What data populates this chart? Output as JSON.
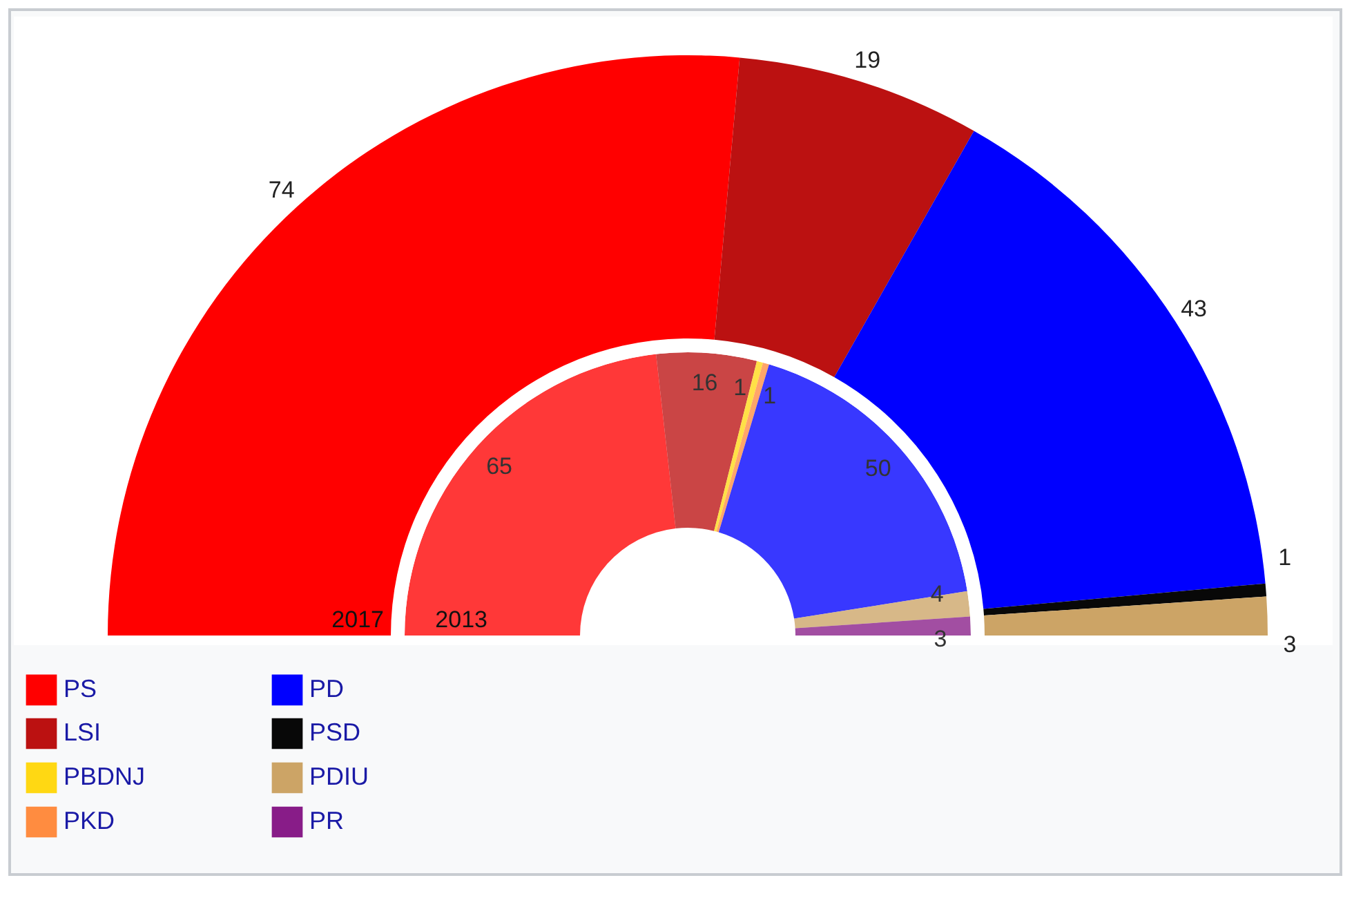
{
  "chart_data": {
    "type": "donut",
    "categories": [
      "PS",
      "LSI",
      "PBDNJ",
      "PKD",
      "PD",
      "PSD",
      "PDIU",
      "PR"
    ],
    "colors": [
      "#ff0000",
      "#bb1111",
      "#ffd813",
      "#ff8c40",
      "#0000ff",
      "#080808",
      "#cca466",
      "#881c88"
    ],
    "series": [
      {
        "name": "2017",
        "values": [
          74,
          19,
          null,
          null,
          43,
          1,
          3,
          null
        ]
      },
      {
        "name": "2013",
        "values": [
          65,
          16,
          1,
          1,
          50,
          null,
          4,
          3
        ]
      }
    ],
    "data_labels": true,
    "legend": "bottom left"
  }
}
